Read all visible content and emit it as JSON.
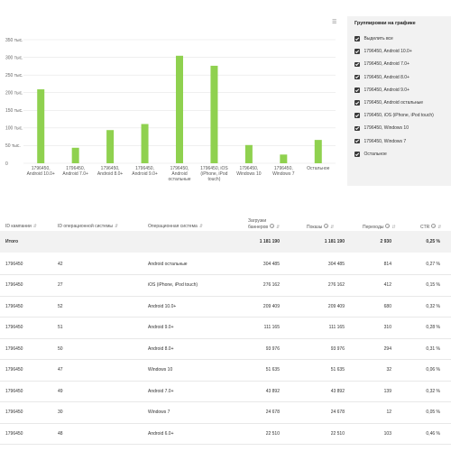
{
  "chart_data": {
    "type": "bar",
    "categories": [
      [
        "1796450,",
        "Android 10.0+"
      ],
      [
        "1796450,",
        "Android 7.0+"
      ],
      [
        "1796450,",
        "Android 8.0+"
      ],
      [
        "1796450,",
        "Android 9.0+"
      ],
      [
        "1796450,",
        "Android",
        "остальные"
      ],
      [
        "1796450, iOS",
        "(iPhone, iPod",
        "touch)"
      ],
      [
        "1796450,",
        "Windows 10"
      ],
      [
        "1796450,",
        "Windows 7"
      ],
      [
        "Остальное"
      ]
    ],
    "values": [
      209409,
      43892,
      93976,
      111165,
      304485,
      276162,
      51635,
      24678,
      66100
    ],
    "ylim": [
      0,
      350000
    ],
    "yticks": [
      0,
      50000,
      100000,
      150000,
      200000,
      250000,
      300000,
      350000
    ],
    "ytick_labels": [
      "0",
      "50 тыс.",
      "100 тыс.",
      "150 тыс.",
      "200 тыс.",
      "250 тыс.",
      "300 тыс.",
      "350 тыс."
    ],
    "color": "#8fd14f",
    "grid": true
  },
  "legend": {
    "title": "Группировки на графике",
    "menu_icon": "menu-icon",
    "items": [
      "Выделить все",
      "1796450, Android 10.0+",
      "1796450, Android 7.0+",
      "1796450, Android 8.0+",
      "1796450, Android 9.0+",
      "1796450, Android остальные",
      "1796450, iOS (iPhone, iPod touch)",
      "1796450, Windows 10",
      "1796450, Windows 7",
      "Остальное"
    ]
  },
  "table": {
    "headers": {
      "campaign_id": "ID кампании",
      "os_id": "ID операционной системы",
      "os": "Операционная система",
      "loads_1": "Загрузки",
      "loads_2": "баннеров",
      "shows": "Показы",
      "clicks": "Переходы",
      "ctr": "CTR"
    },
    "total": {
      "label": "Итого",
      "loads": "1 181 190",
      "shows": "1 181 190",
      "clicks": "2 930",
      "ctr": "0,25 %"
    },
    "rows": [
      {
        "campaign_id": "1796450",
        "os_id": "42",
        "os": "Android остальные",
        "loads": "304 485",
        "shows": "304 485",
        "clicks": "814",
        "ctr": "0,27 %"
      },
      {
        "campaign_id": "1796450",
        "os_id": "27",
        "os": "iOS (iPhone, iPod touch)",
        "loads": "276 162",
        "shows": "276 162",
        "clicks": "412",
        "ctr": "0,15 %"
      },
      {
        "campaign_id": "1796450",
        "os_id": "52",
        "os": "Android 10.0+",
        "loads": "209 409",
        "shows": "209 409",
        "clicks": "680",
        "ctr": "0,32 %"
      },
      {
        "campaign_id": "1796450",
        "os_id": "51",
        "os": "Android 9.0+",
        "loads": "111 165",
        "shows": "111 165",
        "clicks": "310",
        "ctr": "0,28 %"
      },
      {
        "campaign_id": "1796450",
        "os_id": "50",
        "os": "Android 8.0+",
        "loads": "93 976",
        "shows": "93 976",
        "clicks": "294",
        "ctr": "0,31 %"
      },
      {
        "campaign_id": "1796450",
        "os_id": "47",
        "os": "Windows 10",
        "loads": "51 635",
        "shows": "51 635",
        "clicks": "32",
        "ctr": "0,06 %"
      },
      {
        "campaign_id": "1796450",
        "os_id": "49",
        "os": "Android 7.0+",
        "loads": "43 892",
        "shows": "43 892",
        "clicks": "139",
        "ctr": "0,32 %"
      },
      {
        "campaign_id": "1796450",
        "os_id": "30",
        "os": "Windows 7",
        "loads": "24 678",
        "shows": "24 678",
        "clicks": "12",
        "ctr": "0,05 %"
      },
      {
        "campaign_id": "1796450",
        "os_id": "48",
        "os": "Android 6.0+",
        "loads": "22 510",
        "shows": "22 510",
        "clicks": "103",
        "ctr": "0,46 %"
      }
    ]
  }
}
